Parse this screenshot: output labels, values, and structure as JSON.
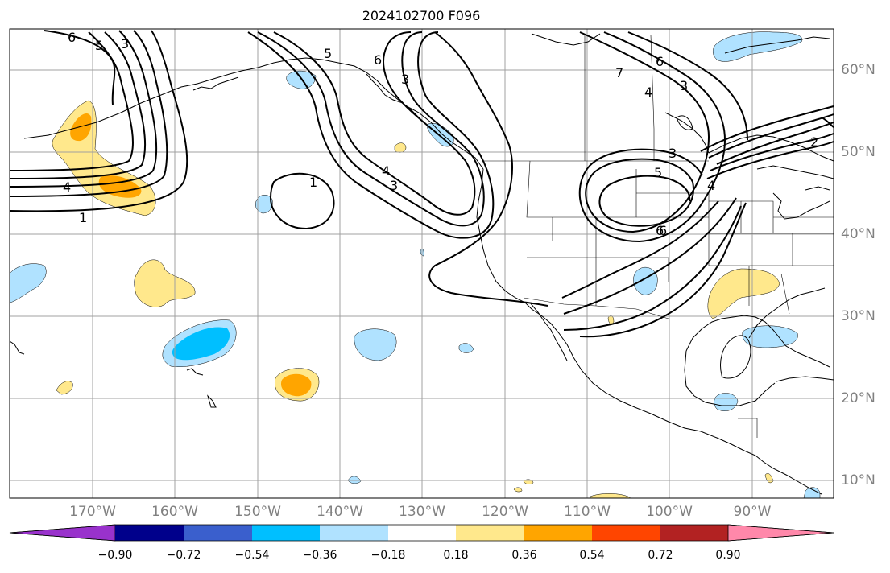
{
  "title": "2024102700 F096",
  "lat_labels": [
    "60°N",
    "50°N",
    "40°N",
    "30°N",
    "20°N",
    "10°N"
  ],
  "lon_labels": [
    "170°W",
    "160°W",
    "150°W",
    "140°W",
    "130°W",
    "120°W",
    "110°W",
    "100°W",
    "90°W"
  ],
  "contour_labels": [
    "6",
    "5",
    "3",
    "4",
    "1",
    "5",
    "6",
    "3",
    "4",
    "3",
    "1",
    "6",
    "7",
    "3",
    "6",
    "4",
    "3",
    "5",
    "6",
    "4",
    "2"
  ],
  "colorbar": {
    "ticks": [
      "−0.90",
      "−0.72",
      "−0.54",
      "−0.36",
      "−0.18",
      "0.18",
      "0.36",
      "0.54",
      "0.72",
      "0.90"
    ],
    "colors": [
      "#9932cc",
      "#00008b",
      "#3a5fcd",
      "#00bfff",
      "#b0e2ff",
      "#ffffff",
      "#ffe88c",
      "#ffa500",
      "#ff4500",
      "#b22222",
      "#ff88aa"
    ]
  },
  "map": {
    "gridline_color": "#a0a0a0",
    "contour_color": "#000000",
    "coast_color": "#000000"
  }
}
